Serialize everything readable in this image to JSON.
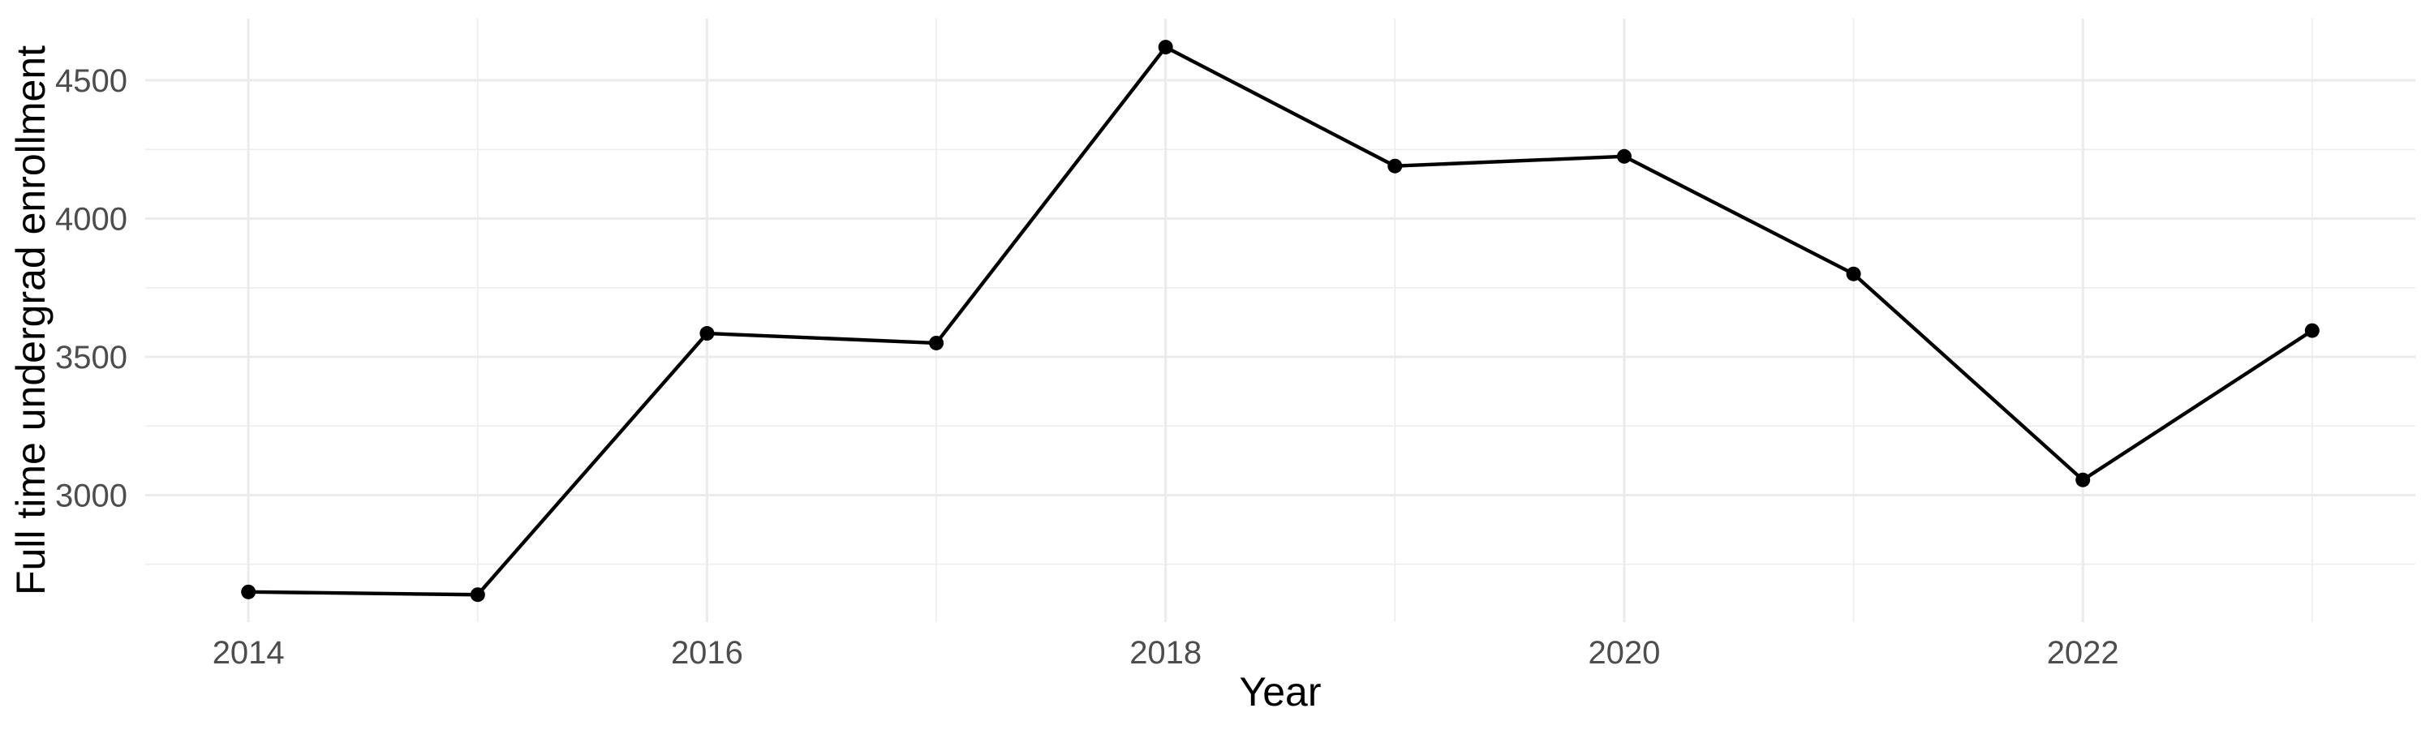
{
  "chart_data": {
    "type": "line",
    "title": "",
    "xlabel": "Year",
    "ylabel": "Full time undergrad enrollment",
    "x": [
      2014,
      2015,
      2016,
      2017,
      2018,
      2019,
      2020,
      2021,
      2022,
      2023
    ],
    "values": [
      2650,
      2640,
      3585,
      3550,
      4620,
      4190,
      4225,
      3800,
      3055,
      3595
    ],
    "series_name": "Full time undergrad enrollment",
    "x_tick_values": [
      2014,
      2016,
      2018,
      2020,
      2022
    ],
    "x_tick_labels": [
      "2014",
      "2016",
      "2018",
      "2020",
      "2022"
    ],
    "x_minor_ticks": [
      2015,
      2017,
      2019,
      2021,
      2023
    ],
    "y_tick_values": [
      3000,
      3500,
      4000,
      4500
    ],
    "y_tick_labels": [
      "3000",
      "3500",
      "4000",
      "4500"
    ],
    "y_minor_ticks": [
      2750,
      3250,
      3750,
      4250
    ],
    "xlim": [
      2013.55,
      2023.45
    ],
    "ylim": [
      2541,
      4723
    ],
    "grid": "major+minor",
    "legend": "none",
    "colors": {
      "line": "#000000",
      "point": "#000000",
      "grid_major": "#EBEBEB",
      "grid_minor": "#EDEDED",
      "tick_label": "#4D4D4D",
      "axis_title": "#000000",
      "background": "#FFFFFF"
    }
  }
}
